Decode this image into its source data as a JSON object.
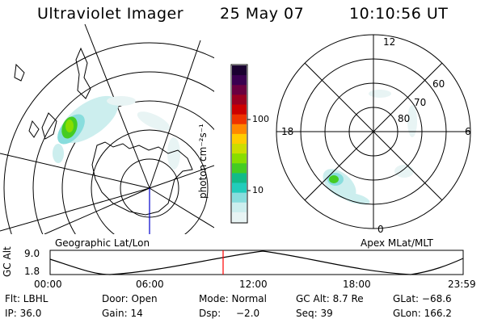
{
  "header": {
    "instrument": "Ultraviolet Imager",
    "date": "25 May 07",
    "time": "10:10:56 UT"
  },
  "left_panel": {
    "label": "Geographic Lat/Lon"
  },
  "right_panel": {
    "label": "Apex MLat/MLT",
    "mlt_labels": [
      "12",
      "18",
      "6",
      "0"
    ],
    "lat_labels": [
      "60",
      "70",
      "80"
    ]
  },
  "colorbar": {
    "unit_label": "photon cm⁻²s⁻¹",
    "ticks": [
      "100",
      "10"
    ],
    "colors": [
      "#1a0030",
      "#3a0050",
      "#6a0040",
      "#9a0020",
      "#cc0000",
      "#ee3300",
      "#ff8800",
      "#ffcc00",
      "#ccdd00",
      "#88dd00",
      "#44cc22",
      "#11bb88",
      "#22ccbb",
      "#88dddd",
      "#cceeee",
      "#e8f4f4"
    ]
  },
  "alt_plot": {
    "ylabel": "GC Alt",
    "ymax": "9.0",
    "ymin": "1.8",
    "xticks": [
      "00:00",
      "06:00",
      "12:00",
      "18:00",
      "23:59"
    ],
    "marker_color": "#ff0000"
  },
  "info": {
    "flt": "Flt: LBHL",
    "door": "Door: Open",
    "mode": "Mode: Normal",
    "gc_alt": "GC Alt: 8.7 Re",
    "glat": "GLat: −68.6",
    "ip": "IP: 36.0",
    "gain": "Gain: 14",
    "dsp_label": "Dsp:",
    "dsp_value": "−2.0",
    "seq": "Seq: 39",
    "glon": "GLon: 166.2"
  }
}
